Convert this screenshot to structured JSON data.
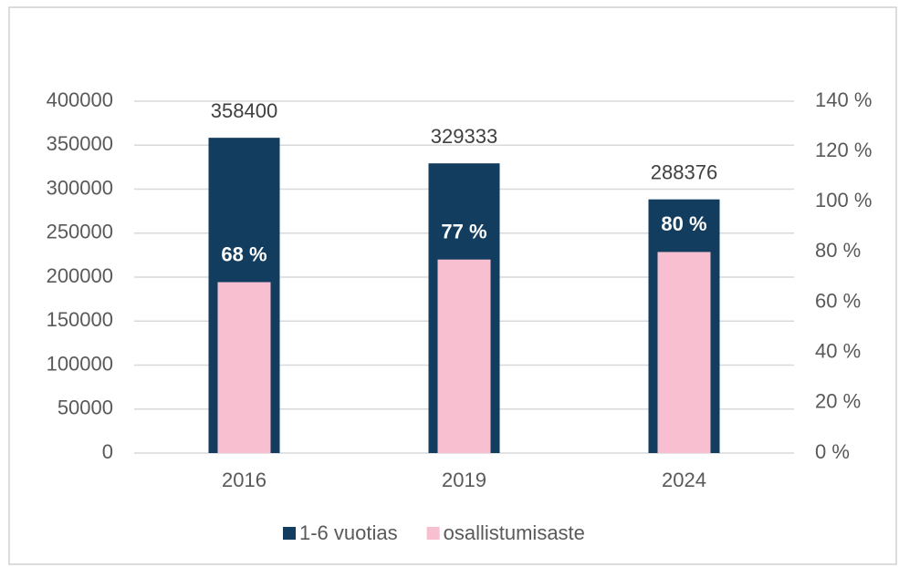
{
  "chart_data": {
    "type": "bar",
    "categories": [
      "2016",
      "2019",
      "2024"
    ],
    "series": [
      {
        "name": "1-6 vuotias",
        "color": "#123d5e",
        "values": [
          358400,
          329333,
          288376
        ]
      },
      {
        "name": "osallistumisaste",
        "color": "#f8bfd0",
        "values": [
          68,
          77,
          80
        ],
        "value_labels": [
          "68 %",
          "77 %",
          "80 %"
        ],
        "axis": "y2"
      }
    ],
    "ylim": [
      0,
      400000
    ],
    "yticks": [
      0,
      50000,
      100000,
      150000,
      200000,
      250000,
      300000,
      350000,
      400000
    ],
    "y2lim": [
      0,
      140
    ],
    "y2ticks": [
      {
        "value": 0,
        "label": "0 %"
      },
      {
        "value": 20,
        "label": "20 %"
      },
      {
        "value": 40,
        "label": "40 %"
      },
      {
        "value": 60,
        "label": "60 %"
      },
      {
        "value": 80,
        "label": "80 %"
      },
      {
        "value": 100,
        "label": "100 %"
      },
      {
        "value": 120,
        "label": "120 %"
      },
      {
        "value": 140,
        "label": "140 %"
      }
    ],
    "grid": true,
    "legend": "bottom"
  }
}
